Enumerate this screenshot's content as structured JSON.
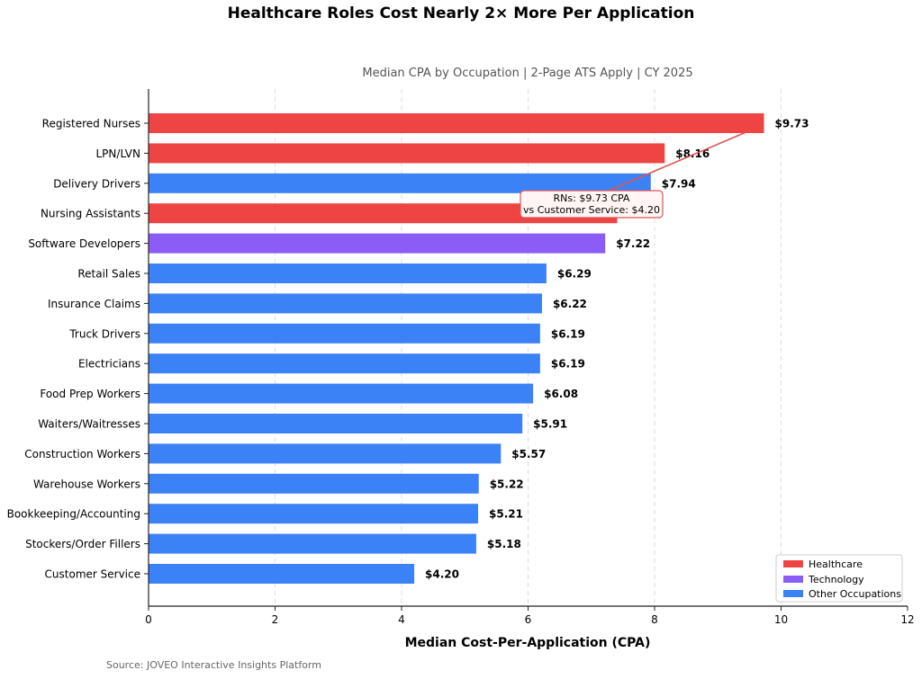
{
  "chart_data": {
    "type": "bar",
    "orientation": "horizontal",
    "title": "Healthcare Roles Cost Nearly 2× More Per Application",
    "subtitle": "Median CPA by Occupation | 2-Page ATS Apply | CY 2025",
    "xlabel": "Median Cost-Per-Application (CPA)",
    "ylabel": "",
    "xlim": [
      0,
      12
    ],
    "xticks": [
      0,
      2,
      4,
      6,
      8,
      10,
      12
    ],
    "grid": "vertical dashed",
    "legend_position": "bottom-right",
    "categories": [
      "Registered Nurses",
      "LPN/LVN",
      "Delivery Drivers",
      "Nursing Assistants",
      "Software Developers",
      "Retail Sales",
      "Insurance Claims",
      "Truck Drivers",
      "Electricians",
      "Food Prep Workers",
      "Waiters/Waitresses",
      "Construction Workers",
      "Warehouse Workers",
      "Bookkeeping/Accounting",
      "Stockers/Order Fillers",
      "Customer Service"
    ],
    "values": [
      9.73,
      8.16,
      7.94,
      7.41,
      7.22,
      6.29,
      6.22,
      6.19,
      6.19,
      6.08,
      5.91,
      5.57,
      5.22,
      5.21,
      5.18,
      4.2
    ],
    "data_labels": [
      "$9.73",
      "$8.16",
      "$7.94",
      "",
      "$7.22",
      "$6.29",
      "$6.22",
      "$6.19",
      "$6.19",
      "$6.08",
      "$5.91",
      "$5.57",
      "$5.22",
      "$5.21",
      "$5.18",
      "$4.20"
    ],
    "groups": [
      "Healthcare",
      "Healthcare",
      "Other Occupations",
      "Healthcare",
      "Technology",
      "Other Occupations",
      "Other Occupations",
      "Other Occupations",
      "Other Occupations",
      "Other Occupations",
      "Other Occupations",
      "Other Occupations",
      "Other Occupations",
      "Other Occupations",
      "Other Occupations",
      "Other Occupations"
    ],
    "legend": [
      {
        "name": "Healthcare",
        "color": "#ef4444"
      },
      {
        "name": "Technology",
        "color": "#8b5cf6"
      },
      {
        "name": "Other Occupations",
        "color": "#3b82f6"
      }
    ],
    "annotation": {
      "lines": [
        "RNs: $9.73 CPA",
        "vs Customer Service: $4.20"
      ],
      "points_to": "Registered Nurses",
      "color": "#e05555"
    }
  },
  "source": "Source: JOVEO Interactive Insights Platform"
}
